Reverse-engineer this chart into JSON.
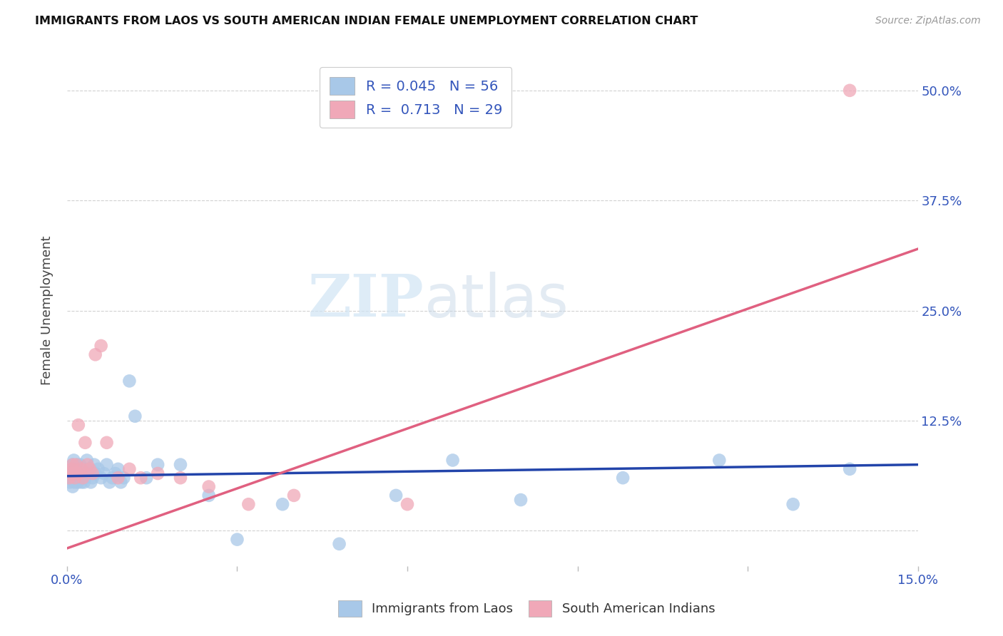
{
  "title": "IMMIGRANTS FROM LAOS VS SOUTH AMERICAN INDIAN FEMALE UNEMPLOYMENT CORRELATION CHART",
  "source": "Source: ZipAtlas.com",
  "ylabel": "Female Unemployment",
  "xlim": [
    0.0,
    0.15
  ],
  "ylim": [
    -0.04,
    0.54
  ],
  "yticks": [
    0.0,
    0.125,
    0.25,
    0.375,
    0.5
  ],
  "ytick_right_labels": [
    "",
    "12.5%",
    "25.0%",
    "37.5%",
    "50.0%"
  ],
  "xticks": [
    0.0,
    0.03,
    0.06,
    0.09,
    0.12,
    0.15
  ],
  "xtick_labels": [
    "0.0%",
    "",
    "",
    "",
    "",
    "15.0%"
  ],
  "blue_color": "#A8C8E8",
  "pink_color": "#F0A8B8",
  "blue_line_color": "#2244AA",
  "pink_line_color": "#E06080",
  "watermark_zip": "ZIP",
  "watermark_atlas": "atlas",
  "background_color": "#FFFFFF",
  "grid_color": "#CCCCCC",
  "legend_r1_r": "R = 0.045",
  "legend_r1_n": "N = 56",
  "legend_r2_r": "R =  0.713",
  "legend_r2_n": "N = 29",
  "text_color": "#3355BB",
  "blue_x": [
    0.0003,
    0.0005,
    0.0007,
    0.0008,
    0.001,
    0.001,
    0.0011,
    0.0012,
    0.0013,
    0.0014,
    0.0015,
    0.0016,
    0.0018,
    0.0019,
    0.002,
    0.0021,
    0.0022,
    0.0023,
    0.0025,
    0.0026,
    0.0028,
    0.003,
    0.0032,
    0.0035,
    0.0038,
    0.004,
    0.0042,
    0.0045,
    0.0048,
    0.005,
    0.0055,
    0.006,
    0.0065,
    0.007,
    0.0075,
    0.008,
    0.0085,
    0.009,
    0.0095,
    0.01,
    0.011,
    0.012,
    0.014,
    0.016,
    0.02,
    0.025,
    0.03,
    0.038,
    0.048,
    0.058,
    0.068,
    0.08,
    0.098,
    0.115,
    0.128,
    0.138
  ],
  "blue_y": [
    0.065,
    0.055,
    0.06,
    0.07,
    0.05,
    0.075,
    0.06,
    0.08,
    0.055,
    0.065,
    0.07,
    0.06,
    0.075,
    0.055,
    0.065,
    0.07,
    0.06,
    0.075,
    0.055,
    0.065,
    0.07,
    0.055,
    0.06,
    0.08,
    0.065,
    0.07,
    0.055,
    0.06,
    0.075,
    0.065,
    0.07,
    0.06,
    0.065,
    0.075,
    0.055,
    0.06,
    0.065,
    0.07,
    0.055,
    0.06,
    0.17,
    0.13,
    0.06,
    0.075,
    0.075,
    0.04,
    -0.01,
    0.03,
    -0.015,
    0.04,
    0.08,
    0.035,
    0.06,
    0.08,
    0.03,
    0.07
  ],
  "pink_x": [
    0.0004,
    0.0006,
    0.0008,
    0.001,
    0.0012,
    0.0014,
    0.0016,
    0.0018,
    0.002,
    0.0022,
    0.0025,
    0.0028,
    0.0032,
    0.0036,
    0.004,
    0.0045,
    0.005,
    0.006,
    0.007,
    0.009,
    0.011,
    0.013,
    0.016,
    0.02,
    0.025,
    0.032,
    0.04,
    0.06,
    0.138
  ],
  "pink_y": [
    0.06,
    0.065,
    0.07,
    0.075,
    0.065,
    0.06,
    0.075,
    0.065,
    0.12,
    0.065,
    0.07,
    0.06,
    0.1,
    0.075,
    0.07,
    0.065,
    0.2,
    0.21,
    0.1,
    0.06,
    0.07,
    0.06,
    0.065,
    0.06,
    0.05,
    0.03,
    0.04,
    0.03,
    0.5
  ],
  "blue_line_x": [
    0.0,
    0.15
  ],
  "blue_line_y": [
    0.062,
    0.075
  ],
  "pink_line_x": [
    0.0,
    0.15
  ],
  "pink_line_y": [
    -0.02,
    0.32
  ]
}
